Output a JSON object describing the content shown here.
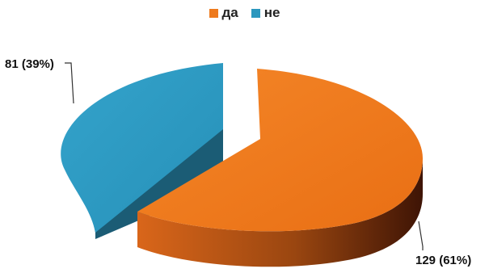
{
  "chart_data": {
    "type": "pie",
    "title": "",
    "legend_position": "top",
    "labels": [
      "да",
      "не"
    ],
    "values": [
      129,
      81
    ],
    "percentages": [
      61,
      39
    ],
    "data_labels": [
      "129 (61%)",
      "81 (39%)"
    ],
    "colors": [
      "#EE7A1D",
      "#2B97BE"
    ],
    "side_colors": [
      "#8A3E0A",
      "#1B5C75"
    ]
  }
}
